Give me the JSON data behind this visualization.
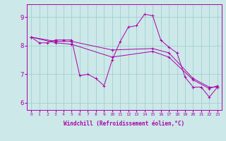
{
  "xlabel": "Windchill (Refroidissement éolien,°C)",
  "background_color": "#cce8e8",
  "line_color": "#aa00aa",
  "grid_color": "#99cccc",
  "xlim": [
    -0.5,
    23.5
  ],
  "ylim": [
    5.75,
    9.45
  ],
  "yticks": [
    6,
    7,
    8,
    9
  ],
  "xticks": [
    0,
    1,
    2,
    3,
    4,
    5,
    6,
    7,
    8,
    9,
    10,
    11,
    12,
    13,
    14,
    15,
    16,
    17,
    18,
    19,
    20,
    21,
    22,
    23
  ],
  "series1": [
    [
      0,
      8.3
    ],
    [
      1,
      8.1
    ],
    [
      2,
      8.1
    ],
    [
      3,
      8.2
    ],
    [
      4,
      8.2
    ],
    [
      5,
      8.2
    ],
    [
      6,
      6.95
    ],
    [
      7,
      7.0
    ],
    [
      8,
      6.85
    ],
    [
      9,
      6.6
    ],
    [
      10,
      7.5
    ],
    [
      11,
      8.15
    ],
    [
      12,
      8.65
    ],
    [
      13,
      8.7
    ],
    [
      14,
      9.1
    ],
    [
      15,
      9.05
    ],
    [
      16,
      8.2
    ],
    [
      17,
      7.95
    ],
    [
      18,
      7.75
    ],
    [
      19,
      6.9
    ],
    [
      20,
      6.55
    ],
    [
      21,
      6.55
    ],
    [
      22,
      6.2
    ],
    [
      23,
      6.55
    ]
  ],
  "series2": [
    [
      0,
      8.3
    ],
    [
      3,
      8.15
    ],
    [
      5,
      8.15
    ],
    [
      10,
      7.85
    ],
    [
      15,
      7.9
    ],
    [
      17,
      7.75
    ],
    [
      20,
      6.85
    ],
    [
      22,
      6.55
    ],
    [
      23,
      6.55
    ]
  ],
  "series3": [
    [
      0,
      8.3
    ],
    [
      3,
      8.1
    ],
    [
      5,
      8.05
    ],
    [
      10,
      7.6
    ],
    [
      15,
      7.8
    ],
    [
      17,
      7.6
    ],
    [
      20,
      6.8
    ],
    [
      22,
      6.5
    ],
    [
      23,
      6.6
    ]
  ]
}
